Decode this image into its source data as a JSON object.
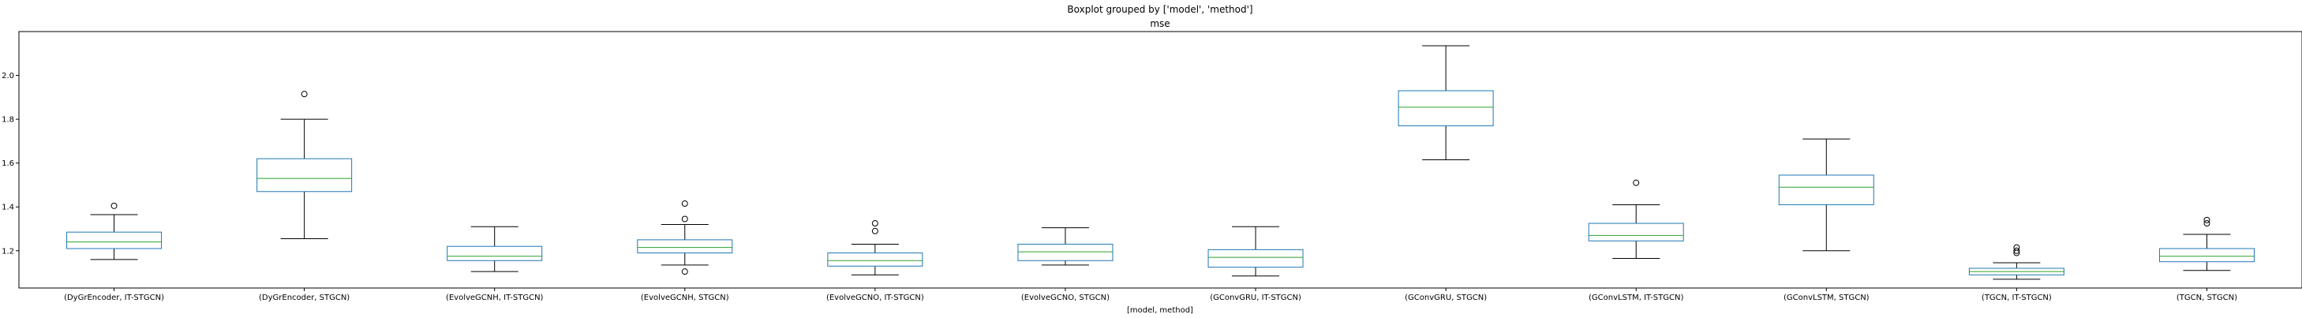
{
  "chart_data": {
    "type": "boxplot",
    "title": "Boxplot grouped by ['model', 'method']",
    "subtitle": "mse",
    "xlabel": "[model, method]",
    "ylabel": "",
    "ylim": [
      1.03,
      2.2
    ],
    "yticks": [
      1.2,
      1.4,
      1.6,
      1.8,
      2.0
    ],
    "ytick_labels": [
      "1.2",
      "1.4",
      "1.6",
      "1.8",
      "2.0"
    ],
    "grid": false,
    "colors": {
      "box": "#1f77b4",
      "median": "#2ca02c",
      "whisker": "#000000",
      "flier": "#000000"
    },
    "categories": [
      "(DyGrEncoder, IT-STGCN)",
      "(DyGrEncoder, STGCN)",
      "(EvolveGCNH, IT-STGCN)",
      "(EvolveGCNH, STGCN)",
      "(EvolveGCNO, IT-STGCN)",
      "(EvolveGCNO, STGCN)",
      "(GConvGRU, IT-STGCN)",
      "(GConvGRU, STGCN)",
      "(GConvLSTM, IT-STGCN)",
      "(GConvLSTM, STGCN)",
      "(TGCN, IT-STGCN)",
      "(TGCN, STGCN)"
    ],
    "boxes": [
      {
        "whislo": 1.16,
        "q1": 1.21,
        "med": 1.24,
        "q3": 1.285,
        "whishi": 1.365,
        "fliers": [
          1.405
        ]
      },
      {
        "whislo": 1.255,
        "q1": 1.47,
        "med": 1.53,
        "q3": 1.62,
        "whishi": 1.8,
        "fliers": [
          1.915
        ]
      },
      {
        "whislo": 1.105,
        "q1": 1.155,
        "med": 1.175,
        "q3": 1.22,
        "whishi": 1.31,
        "fliers": []
      },
      {
        "whislo": 1.135,
        "q1": 1.19,
        "med": 1.215,
        "q3": 1.25,
        "whishi": 1.32,
        "fliers": [
          1.105,
          1.345,
          1.415
        ]
      },
      {
        "whislo": 1.09,
        "q1": 1.13,
        "med": 1.155,
        "q3": 1.19,
        "whishi": 1.23,
        "fliers": [
          1.29,
          1.325
        ]
      },
      {
        "whislo": 1.135,
        "q1": 1.155,
        "med": 1.195,
        "q3": 1.23,
        "whishi": 1.305,
        "fliers": []
      },
      {
        "whislo": 1.085,
        "q1": 1.125,
        "med": 1.17,
        "q3": 1.205,
        "whishi": 1.31,
        "fliers": []
      },
      {
        "whislo": 1.615,
        "q1": 1.77,
        "med": 1.855,
        "q3": 1.93,
        "whishi": 2.135,
        "fliers": []
      },
      {
        "whislo": 1.165,
        "q1": 1.245,
        "med": 1.27,
        "q3": 1.325,
        "whishi": 1.41,
        "fliers": [
          1.51
        ]
      },
      {
        "whislo": 1.2,
        "q1": 1.41,
        "med": 1.49,
        "q3": 1.545,
        "whishi": 1.71,
        "fliers": []
      },
      {
        "whislo": 1.07,
        "q1": 1.09,
        "med": 1.105,
        "q3": 1.12,
        "whishi": 1.145,
        "fliers": [
          1.19,
          1.2,
          1.215
        ]
      },
      {
        "whislo": 1.11,
        "q1": 1.15,
        "med": 1.175,
        "q3": 1.21,
        "whishi": 1.275,
        "fliers": [
          1.325,
          1.34
        ]
      }
    ]
  }
}
